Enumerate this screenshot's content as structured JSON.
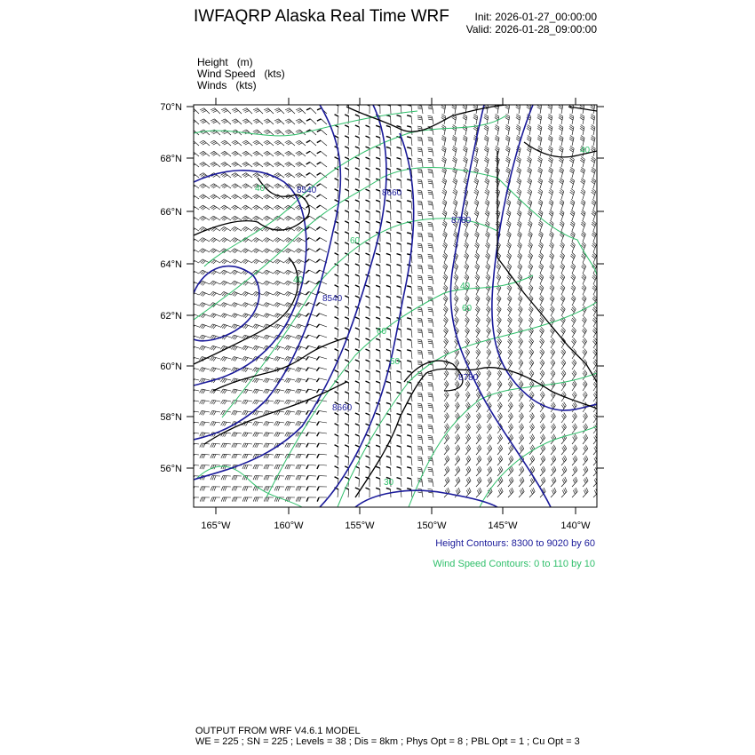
{
  "header": {
    "title": "IWFAQRP Alaska Real Time WRF",
    "init": "Init: 2026-01-27_00:00:00",
    "valid": "Valid: 2026-01-28_09:00:00"
  },
  "fields": [
    "Height   (m)",
    "Wind Speed   (kts)",
    "Winds   (kts)"
  ],
  "map": {
    "lat_labels": [
      "70°N",
      "68°N",
      "66°N",
      "64°N",
      "62°N",
      "60°N",
      "58°N",
      "56°N"
    ],
    "lon_labels": [
      "165°W",
      "160°W",
      "155°W",
      "150°W",
      "145°W",
      "140°W"
    ],
    "height_contour_labels": [
      "8540",
      "8660",
      "8780",
      "8540",
      "8660",
      "8780"
    ],
    "wind_contour_labels": [
      "40",
      "60",
      "40",
      "60",
      "50",
      "60",
      "40",
      "40",
      "30"
    ],
    "colors": {
      "height": "#1a1a9a",
      "wind_speed": "#2fbf6a",
      "barbs": "#000000",
      "coast": "#000000"
    }
  },
  "legend": {
    "height_contours": "Height Contours: 8300 to 9020 by 60",
    "wind_contours": "Wind Speed Contours: 0 to 110 by 10"
  },
  "footer": {
    "line1": "OUTPUT FROM WRF V4.6.1 MODEL",
    "line2": "WE = 225 ; SN = 225 ; Levels = 38 ; Dis = 8km ; Phys Opt = 8 ; PBL Opt = 1 ; Cu Opt = 3"
  }
}
